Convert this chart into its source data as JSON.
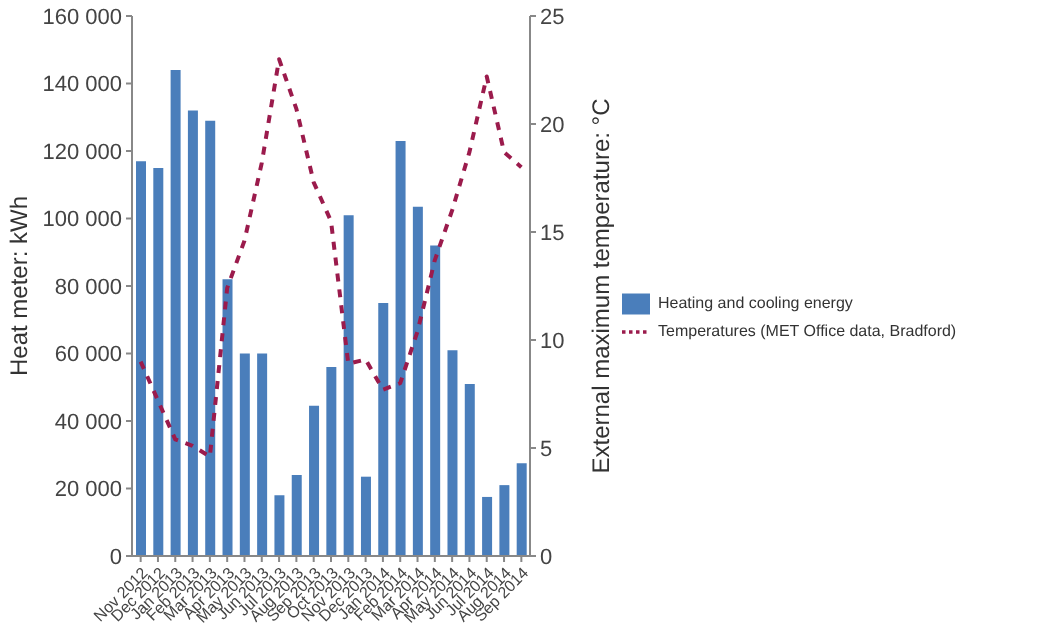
{
  "chart_data": {
    "type": "bar",
    "categories": [
      "Nov 2012",
      "Dec 2012",
      "Jan 2013",
      "Feb 2013",
      "Mar 2013",
      "Apr 2013",
      "May 2013",
      "Jun 2013",
      "Jul 2013",
      "Aug 2013",
      "Sep 2013",
      "Oct 2013",
      "Nov 2013",
      "Dec 2013",
      "Jan 2014",
      "Feb 2014",
      "Mar 2014",
      "Apr 2014",
      "May 2014",
      "Jun 2014",
      "Jul 2014",
      "Aug 2014",
      "Sep 2014"
    ],
    "series": [
      {
        "name": "Heating and cooling energy",
        "color": "#4a7ebb",
        "values": [
          117000,
          115000,
          144000,
          132000,
          129000,
          82000,
          60000,
          60000,
          18000,
          24000,
          44500,
          56000,
          101000,
          23500,
          75000,
          123000,
          103500,
          92000,
          61000,
          51000,
          17500,
          21000,
          27500
        ]
      },
      {
        "name": "Temperatures (MET Office data, Bradford)",
        "type": "line",
        "axis": "y2",
        "color": "#9b1b4c",
        "line_style": "dashed",
        "values": [
          9.0,
          7.2,
          5.4,
          5.1,
          4.6,
          12.4,
          14.6,
          18.2,
          23.0,
          20.7,
          17.3,
          15.5,
          8.9,
          9.1,
          7.7,
          8.0,
          10.4,
          13.7,
          16.0,
          18.7,
          22.2,
          18.7,
          18.0
        ]
      }
    ],
    "ylabel": "Heat meter: kWh",
    "y2label": "External maximum temperature: °C",
    "ylim": [
      0,
      160000
    ],
    "yticks": [
      0,
      {
        "value": 20000,
        "label": "20 000"
      },
      {
        "value": 40000,
        "label": "40 000"
      },
      {
        "value": 60000,
        "label": "60 000"
      },
      {
        "value": 80000,
        "label": "80 000"
      },
      {
        "value": 100000,
        "label": "100 000"
      },
      {
        "value": 120000,
        "label": "120 000"
      },
      {
        "value": 140000,
        "label": "140 000"
      },
      {
        "value": 160000,
        "label": "160 000"
      }
    ],
    "y2lim": [
      0,
      25
    ],
    "y2ticks": [
      0,
      5,
      10,
      15,
      20,
      25
    ],
    "grid": false,
    "legend": "right",
    "marker": "none"
  }
}
